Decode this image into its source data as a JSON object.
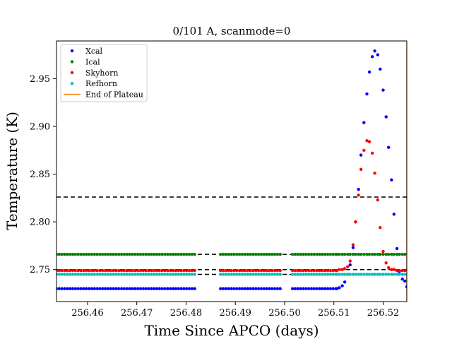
{
  "chart_data": {
    "type": "scatter",
    "title": "0/101 A, scanmode=0",
    "xlabel": "Time Since APCO (days)",
    "ylabel": "Temperature (K)",
    "xlim": [
      256.4537,
      256.5248
    ],
    "ylim": [
      2.7165,
      2.9895
    ],
    "xticks": [
      256.46,
      256.47,
      256.48,
      256.49,
      256.5,
      256.51,
      256.52
    ],
    "xtick_labels": [
      "256.46",
      "256.47",
      "256.48",
      "256.49",
      "256.50",
      "256.51",
      "256.52"
    ],
    "yticks": [
      2.75,
      2.8,
      2.85,
      2.9,
      2.95
    ],
    "ytick_labels": [
      "2.75",
      "2.80",
      "2.85",
      "2.90",
      "2.95"
    ],
    "legend": {
      "placement": "upper-left",
      "entries": [
        {
          "label": "Xcal",
          "color": "#0000ff",
          "marker": "dot"
        },
        {
          "label": "Ical",
          "color": "#008000",
          "marker": "dot"
        },
        {
          "label": "Skyhorn",
          "color": "#ff0000",
          "marker": "dot"
        },
        {
          "label": "Refhorn",
          "color": "#00bfbf",
          "marker": "dot"
        },
        {
          "label": "End of Plateau",
          "color": "#ff7f0e",
          "marker": "line"
        }
      ]
    },
    "hlines": [
      {
        "y": 2.826,
        "color": "#000000",
        "style": "dashed"
      },
      {
        "y": 2.766,
        "color": "#000000",
        "style": "dashed"
      },
      {
        "y": 2.75,
        "color": "#000000",
        "style": "dashed"
      },
      {
        "y": 2.745,
        "color": "#000000",
        "style": "dashed"
      }
    ],
    "vlines": [
      {
        "x": 256.5248,
        "color": "#ff7f0e",
        "label": "End of Plateau"
      }
    ],
    "plateau": {
      "segments": [
        [
          256.4537,
          256.4819
        ],
        [
          256.487,
          256.4994
        ],
        [
          256.5016,
          256.5105
        ]
      ],
      "step": 0.00055,
      "levels": {
        "Xcal": 2.73,
        "Ical": 2.766,
        "Skyhorn": 2.749,
        "Refhorn": 2.745
      }
    },
    "series": [
      {
        "name": "Xcal",
        "color": "#0000ff",
        "x": [
          256.5106,
          256.5111,
          256.5117,
          256.5122,
          256.5128,
          256.5133,
          256.5139,
          256.5144,
          256.515,
          256.5155,
          256.5161,
          256.5167,
          256.5172,
          256.5178,
          256.5183,
          256.5189,
          256.5194,
          256.52,
          256.5206,
          256.5211,
          256.5217,
          256.5222,
          256.5228,
          256.5233,
          256.5239,
          256.5244,
          256.5248
        ],
        "y": [
          2.73,
          2.731,
          2.733,
          2.737,
          2.745,
          2.755,
          2.773,
          2.8,
          2.834,
          2.87,
          2.904,
          2.934,
          2.957,
          2.973,
          2.979,
          2.975,
          2.96,
          2.938,
          2.91,
          2.878,
          2.844,
          2.808,
          2.772,
          2.748,
          2.74,
          2.738,
          2.732
        ]
      },
      {
        "name": "Ical",
        "color": "#008000",
        "x": [
          256.5106,
          256.5111,
          256.5117,
          256.5122,
          256.5128,
          256.5133,
          256.5139,
          256.5144,
          256.515,
          256.5155,
          256.5161,
          256.5167,
          256.5172,
          256.5178,
          256.5183,
          256.5189,
          256.5194,
          256.52,
          256.5206,
          256.5211,
          256.5217,
          256.5222,
          256.5228,
          256.5233,
          256.5239,
          256.5244
        ],
        "y": [
          2.766,
          2.766,
          2.766,
          2.766,
          2.766,
          2.766,
          2.766,
          2.766,
          2.766,
          2.766,
          2.766,
          2.766,
          2.766,
          2.766,
          2.766,
          2.766,
          2.766,
          2.766,
          2.766,
          2.766,
          2.766,
          2.766,
          2.766,
          2.766,
          2.766,
          2.766
        ]
      },
      {
        "name": "Skyhorn",
        "color": "#ff0000",
        "x": [
          256.5106,
          256.5111,
          256.5117,
          256.5122,
          256.5128,
          256.5133,
          256.5139,
          256.5144,
          256.515,
          256.5155,
          256.5161,
          256.5167,
          256.5172,
          256.5178,
          256.5183,
          256.5189,
          256.5194,
          256.52,
          256.5206,
          256.5211,
          256.5217,
          256.5222,
          256.5228,
          256.5233,
          256.5239,
          256.5244
        ],
        "y": [
          2.749,
          2.75,
          2.75,
          2.751,
          2.753,
          2.759,
          2.776,
          2.8,
          2.828,
          2.855,
          2.875,
          2.885,
          2.884,
          2.872,
          2.851,
          2.823,
          2.794,
          2.769,
          2.757,
          2.752,
          2.75,
          2.75,
          2.749,
          2.749,
          2.749,
          2.749
        ]
      },
      {
        "name": "Refhorn",
        "color": "#00bfbf",
        "x": [
          256.5106,
          256.5111,
          256.5117,
          256.5122,
          256.5128,
          256.5133,
          256.5139,
          256.5144,
          256.515,
          256.5155,
          256.5161,
          256.5167,
          256.5172,
          256.5178,
          256.5183,
          256.5189,
          256.5194,
          256.52,
          256.5206,
          256.5211,
          256.5217,
          256.5222,
          256.5228,
          256.5233,
          256.5239,
          256.5244
        ],
        "y": [
          2.745,
          2.745,
          2.745,
          2.745,
          2.745,
          2.745,
          2.745,
          2.745,
          2.745,
          2.745,
          2.745,
          2.745,
          2.745,
          2.745,
          2.745,
          2.745,
          2.745,
          2.745,
          2.745,
          2.745,
          2.745,
          2.745,
          2.745,
          2.745,
          2.745,
          2.745
        ]
      }
    ]
  }
}
